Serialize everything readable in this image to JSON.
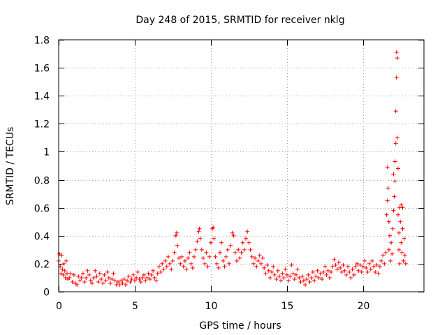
{
  "chart_data": {
    "type": "scatter",
    "title": "Day 248 of 2015, SRMTID for receiver nklg",
    "xlabel": "GPS time / hours",
    "ylabel": "SRMTID / TECUs",
    "xlim": [
      0,
      24
    ],
    "ylim": [
      0,
      1.8
    ],
    "xticks": [
      0,
      5,
      10,
      15,
      20
    ],
    "xtick_labels": [
      "0",
      "5",
      "10",
      "15",
      "20"
    ],
    "yticks": [
      0,
      0.2,
      0.4,
      0.6,
      0.8,
      1,
      1.2,
      1.4,
      1.6,
      1.8
    ],
    "ytick_labels": [
      "0",
      "0.2",
      "0.4",
      "0.6",
      "0.8",
      "1",
      "1.2",
      "1.4",
      "1.6",
      "1.8"
    ],
    "grid": true,
    "marker": "plus",
    "marker_color": "#ff0000",
    "series": [
      {
        "name": "SRMTID",
        "points": [
          [
            0.0,
            0.22
          ],
          [
            0.05,
            0.27
          ],
          [
            0.1,
            0.18
          ],
          [
            0.15,
            0.13
          ],
          [
            0.2,
            0.26
          ],
          [
            0.25,
            0.16
          ],
          [
            0.3,
            0.12
          ],
          [
            0.35,
            0.2
          ],
          [
            0.4,
            0.15
          ],
          [
            0.45,
            0.1
          ],
          [
            0.5,
            0.22
          ],
          [
            0.55,
            0.13
          ],
          [
            0.6,
            0.09
          ],
          [
            0.7,
            0.1
          ],
          [
            0.8,
            0.13
          ],
          [
            0.9,
            0.07
          ],
          [
            1.0,
            0.12
          ],
          [
            1.1,
            0.06
          ],
          [
            1.2,
            0.05
          ],
          [
            1.3,
            0.11
          ],
          [
            1.4,
            0.08
          ],
          [
            1.5,
            0.1
          ],
          [
            1.6,
            0.13
          ],
          [
            1.7,
            0.07
          ],
          [
            1.8,
            0.1
          ],
          [
            1.9,
            0.15
          ],
          [
            2.0,
            0.12
          ],
          [
            2.1,
            0.08
          ],
          [
            2.2,
            0.06
          ],
          [
            2.3,
            0.1
          ],
          [
            2.4,
            0.15
          ],
          [
            2.5,
            0.11
          ],
          [
            2.6,
            0.07
          ],
          [
            2.7,
            0.13
          ],
          [
            2.8,
            0.09
          ],
          [
            2.9,
            0.06
          ],
          [
            3.0,
            0.12
          ],
          [
            3.1,
            0.08
          ],
          [
            3.2,
            0.14
          ],
          [
            3.3,
            0.1
          ],
          [
            3.4,
            0.06
          ],
          [
            3.5,
            0.09
          ],
          [
            3.6,
            0.13
          ],
          [
            3.7,
            0.08
          ],
          [
            3.8,
            0.05
          ],
          [
            3.9,
            0.07
          ],
          [
            4.0,
            0.05
          ],
          [
            4.1,
            0.08
          ],
          [
            4.2,
            0.06
          ],
          [
            4.3,
            0.09
          ],
          [
            4.4,
            0.05
          ],
          [
            4.5,
            0.08
          ],
          [
            4.6,
            0.11
          ],
          [
            4.7,
            0.07
          ],
          [
            4.8,
            0.09
          ],
          [
            4.9,
            0.12
          ],
          [
            5.0,
            0.08
          ],
          [
            5.1,
            0.1
          ],
          [
            5.2,
            0.14
          ],
          [
            5.3,
            0.09
          ],
          [
            5.4,
            0.07
          ],
          [
            5.5,
            0.1
          ],
          [
            5.6,
            0.12
          ],
          [
            5.7,
            0.08
          ],
          [
            5.8,
            0.1
          ],
          [
            5.9,
            0.13
          ],
          [
            6.0,
            0.09
          ],
          [
            6.1,
            0.12
          ],
          [
            6.2,
            0.15
          ],
          [
            6.3,
            0.1
          ],
          [
            6.4,
            0.08
          ],
          [
            6.5,
            0.13
          ],
          [
            6.6,
            0.18
          ],
          [
            6.7,
            0.14
          ],
          [
            6.8,
            0.2
          ],
          [
            6.9,
            0.16
          ],
          [
            7.0,
            0.22
          ],
          [
            7.1,
            0.18
          ],
          [
            7.2,
            0.25
          ],
          [
            7.3,
            0.2
          ],
          [
            7.4,
            0.16
          ],
          [
            7.5,
            0.22
          ],
          [
            7.6,
            0.28
          ],
          [
            7.7,
            0.4
          ],
          [
            7.75,
            0.42
          ],
          [
            7.8,
            0.33
          ],
          [
            7.9,
            0.24
          ],
          [
            8.0,
            0.2
          ],
          [
            8.1,
            0.25
          ],
          [
            8.2,
            0.18
          ],
          [
            8.3,
            0.22
          ],
          [
            8.4,
            0.16
          ],
          [
            8.5,
            0.24
          ],
          [
            8.6,
            0.28
          ],
          [
            8.7,
            0.2
          ],
          [
            8.8,
            0.17
          ],
          [
            8.9,
            0.25
          ],
          [
            9.0,
            0.3
          ],
          [
            9.1,
            0.36
          ],
          [
            9.2,
            0.43
          ],
          [
            9.25,
            0.45
          ],
          [
            9.3,
            0.38
          ],
          [
            9.4,
            0.3
          ],
          [
            9.5,
            0.24
          ],
          [
            9.6,
            0.2
          ],
          [
            9.7,
            0.28
          ],
          [
            9.8,
            0.18
          ],
          [
            9.9,
            0.25
          ],
          [
            10.0,
            0.35
          ],
          [
            10.1,
            0.45
          ],
          [
            10.15,
            0.46
          ],
          [
            10.2,
            0.38
          ],
          [
            10.3,
            0.25
          ],
          [
            10.4,
            0.2
          ],
          [
            10.5,
            0.17
          ],
          [
            10.6,
            0.28
          ],
          [
            10.7,
            0.35
          ],
          [
            10.8,
            0.22
          ],
          [
            10.9,
            0.18
          ],
          [
            11.0,
            0.25
          ],
          [
            11.1,
            0.3
          ],
          [
            11.2,
            0.2
          ],
          [
            11.3,
            0.33
          ],
          [
            11.4,
            0.42
          ],
          [
            11.5,
            0.4
          ],
          [
            11.6,
            0.28
          ],
          [
            11.7,
            0.22
          ],
          [
            11.8,
            0.3
          ],
          [
            11.9,
            0.24
          ],
          [
            12.0,
            0.28
          ],
          [
            12.1,
            0.35
          ],
          [
            12.2,
            0.3
          ],
          [
            12.3,
            0.38
          ],
          [
            12.4,
            0.43
          ],
          [
            12.5,
            0.35
          ],
          [
            12.6,
            0.3
          ],
          [
            12.7,
            0.25
          ],
          [
            12.8,
            0.2
          ],
          [
            12.9,
            0.24
          ],
          [
            13.0,
            0.18
          ],
          [
            13.1,
            0.22
          ],
          [
            13.2,
            0.26
          ],
          [
            13.3,
            0.2
          ],
          [
            13.4,
            0.24
          ],
          [
            13.5,
            0.17
          ],
          [
            13.6,
            0.13
          ],
          [
            13.7,
            0.19
          ],
          [
            13.8,
            0.15
          ],
          [
            13.9,
            0.1
          ],
          [
            14.0,
            0.14
          ],
          [
            14.1,
            0.18
          ],
          [
            14.2,
            0.12
          ],
          [
            14.3,
            0.09
          ],
          [
            14.4,
            0.15
          ],
          [
            14.5,
            0.11
          ],
          [
            14.6,
            0.08
          ],
          [
            14.7,
            0.13
          ],
          [
            14.8,
            0.1
          ],
          [
            14.9,
            0.16
          ],
          [
            15.0,
            0.12
          ],
          [
            15.1,
            0.08
          ],
          [
            15.2,
            0.11
          ],
          [
            15.3,
            0.19
          ],
          [
            15.4,
            0.13
          ],
          [
            15.5,
            0.09
          ],
          [
            15.6,
            0.12
          ],
          [
            15.7,
            0.16
          ],
          [
            15.8,
            0.1
          ],
          [
            15.9,
            0.07
          ],
          [
            16.0,
            0.11
          ],
          [
            16.1,
            0.08
          ],
          [
            16.2,
            0.05
          ],
          [
            16.3,
            0.09
          ],
          [
            16.4,
            0.12
          ],
          [
            16.5,
            0.07
          ],
          [
            16.6,
            0.1
          ],
          [
            16.7,
            0.14
          ],
          [
            16.8,
            0.08
          ],
          [
            16.9,
            0.11
          ],
          [
            17.0,
            0.15
          ],
          [
            17.1,
            0.1
          ],
          [
            17.2,
            0.13
          ],
          [
            17.3,
            0.09
          ],
          [
            17.4,
            0.14
          ],
          [
            17.5,
            0.18
          ],
          [
            17.6,
            0.12
          ],
          [
            17.7,
            0.15
          ],
          [
            17.8,
            0.1
          ],
          [
            17.9,
            0.14
          ],
          [
            18.0,
            0.18
          ],
          [
            18.1,
            0.23
          ],
          [
            18.2,
            0.19
          ],
          [
            18.3,
            0.16
          ],
          [
            18.4,
            0.21
          ],
          [
            18.5,
            0.17
          ],
          [
            18.6,
            0.14
          ],
          [
            18.7,
            0.19
          ],
          [
            18.8,
            0.15
          ],
          [
            18.9,
            0.12
          ],
          [
            19.0,
            0.18
          ],
          [
            19.1,
            0.14
          ],
          [
            19.2,
            0.1
          ],
          [
            19.3,
            0.16
          ],
          [
            19.4,
            0.12
          ],
          [
            19.5,
            0.18
          ],
          [
            19.6,
            0.2
          ],
          [
            19.7,
            0.15
          ],
          [
            19.8,
            0.19
          ],
          [
            19.9,
            0.14
          ],
          [
            20.0,
            0.18
          ],
          [
            20.1,
            0.22
          ],
          [
            20.2,
            0.17
          ],
          [
            20.3,
            0.14
          ],
          [
            20.4,
            0.2
          ],
          [
            20.5,
            0.16
          ],
          [
            20.6,
            0.22
          ],
          [
            20.7,
            0.18
          ],
          [
            20.8,
            0.14
          ],
          [
            20.9,
            0.19
          ],
          [
            21.0,
            0.13
          ],
          [
            21.1,
            0.18
          ],
          [
            21.2,
            0.22
          ],
          [
            21.3,
            0.26
          ],
          [
            21.4,
            0.2
          ],
          [
            21.5,
            0.28
          ],
          [
            21.55,
            0.55
          ],
          [
            21.6,
            0.65
          ],
          [
            21.6,
            0.89
          ],
          [
            21.65,
            0.74
          ],
          [
            21.7,
            0.3
          ],
          [
            21.7,
            0.5
          ],
          [
            21.75,
            0.4
          ],
          [
            21.8,
            0.22
          ],
          [
            21.85,
            0.35
          ],
          [
            21.9,
            0.27
          ],
          [
            21.95,
            0.45
          ],
          [
            22.0,
            0.58
          ],
          [
            22.0,
            0.84
          ],
          [
            22.05,
            0.68
          ],
          [
            22.1,
            0.79
          ],
          [
            22.1,
            0.93
          ],
          [
            22.15,
            1.06
          ],
          [
            22.15,
            1.29
          ],
          [
            22.2,
            1.53
          ],
          [
            22.2,
            1.71
          ],
          [
            22.25,
            1.67
          ],
          [
            22.25,
            1.1
          ],
          [
            22.3,
            0.88
          ],
          [
            22.3,
            0.55
          ],
          [
            22.35,
            0.42
          ],
          [
            22.35,
            0.3
          ],
          [
            22.4,
            0.6
          ],
          [
            22.4,
            0.2
          ],
          [
            22.45,
            0.5
          ],
          [
            22.5,
            0.35
          ],
          [
            22.5,
            0.62
          ],
          [
            22.55,
            0.28
          ],
          [
            22.6,
            0.45
          ],
          [
            22.6,
            0.6
          ],
          [
            22.65,
            0.22
          ],
          [
            22.7,
            0.38
          ],
          [
            22.75,
            0.26
          ],
          [
            22.8,
            0.2
          ]
        ]
      }
    ]
  }
}
